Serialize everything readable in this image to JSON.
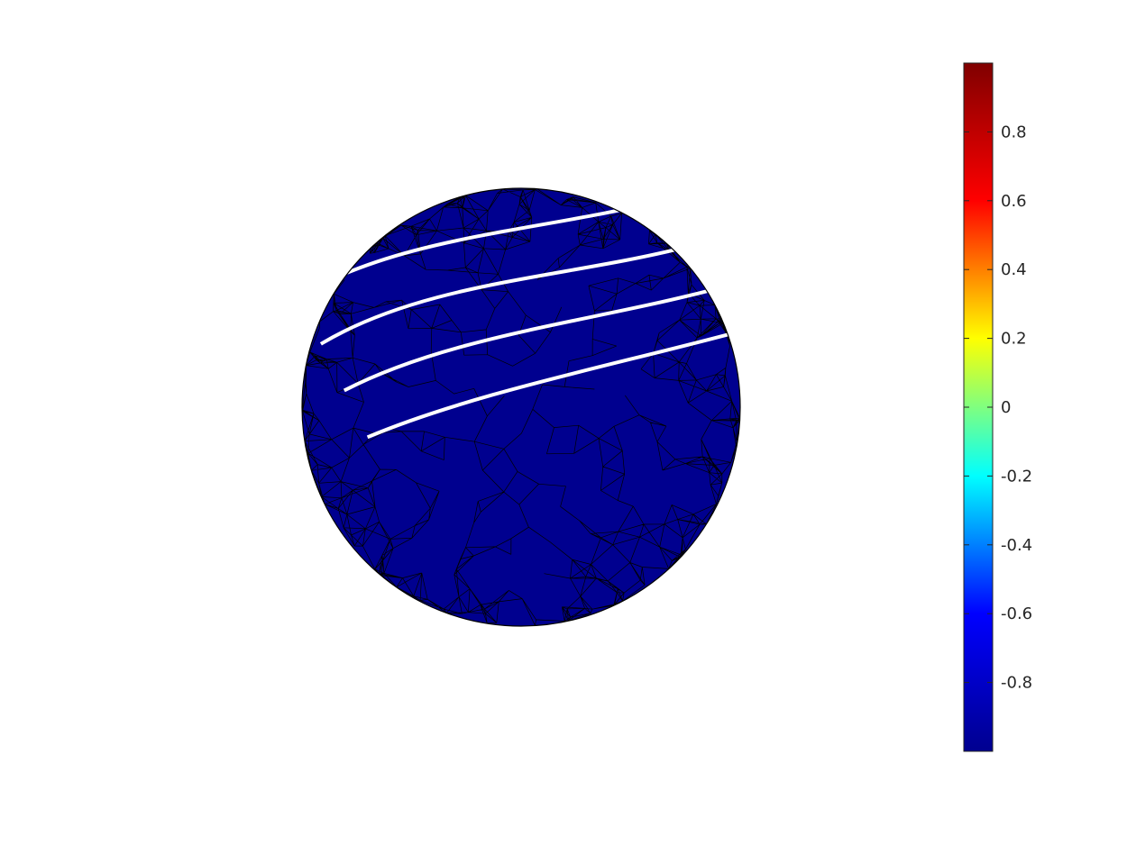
{
  "chart_data": {
    "type": "surface",
    "shape": "sphere",
    "mesh": "triangulated",
    "mesh_edge_color": "#000000",
    "contour_line_color": "#ffffff",
    "colormap": "jet",
    "colormap_stops": [
      "#00008f",
      "#0000ff",
      "#00ffff",
      "#ffff00",
      "#ff0000",
      "#800000"
    ],
    "contour_levels": [
      0.75,
      0.5,
      0.25,
      0,
      -0.25,
      -0.5,
      -0.75
    ],
    "colorbar": {
      "position": "right",
      "range": [
        -1,
        1
      ],
      "tick_values": [
        0.8,
        0.6,
        0.4,
        0.2,
        0,
        -0.2,
        -0.4,
        -0.6,
        -0.8
      ],
      "tick_labels": [
        "0.8",
        "0.6",
        "0.4",
        "0.2",
        "0",
        "-0.2",
        "-0.4",
        "-0.6",
        "-0.8"
      ]
    },
    "title": "",
    "xlabel": "",
    "ylabel": ""
  }
}
